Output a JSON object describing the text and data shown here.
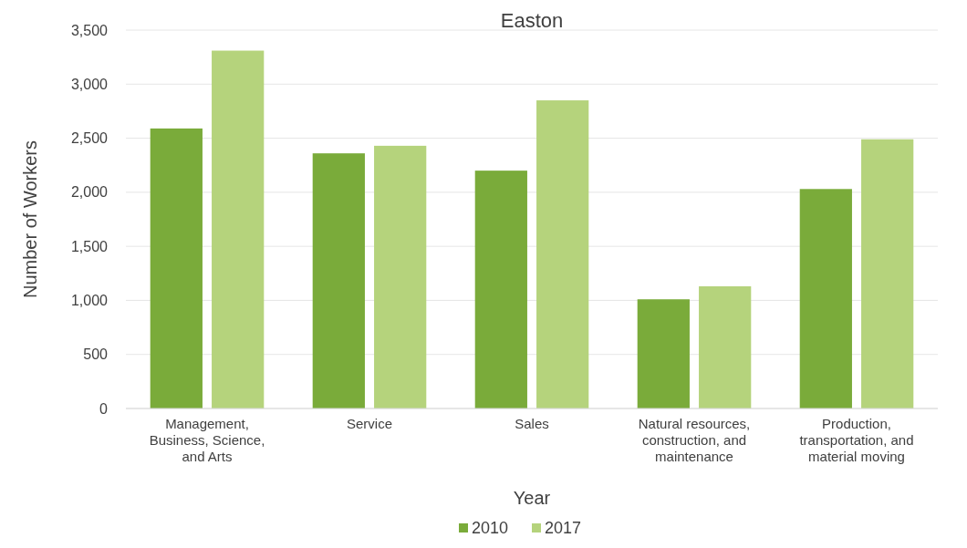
{
  "chart_data": {
    "type": "bar",
    "title": "Easton",
    "xlabel": "Year",
    "ylabel": "Number of Workers",
    "categories": [
      "Management, Business, Science, and Arts",
      "Service",
      "Sales",
      "Natural resources, construction, and maintenance",
      "Production, transportation, and material moving"
    ],
    "series": [
      {
        "name": "2010",
        "color": "#7aab3a",
        "values": [
          2590,
          2360,
          2200,
          1010,
          2030
        ]
      },
      {
        "name": "2017",
        "color": "#b5d37c",
        "values": [
          3310,
          2430,
          2850,
          1130,
          2490
        ]
      }
    ],
    "ylim": [
      0,
      3500
    ],
    "yticks": [
      {
        "value": 0,
        "label": "0"
      },
      {
        "value": 500,
        "label": "500"
      },
      {
        "value": 1000,
        "label": "1,000"
      },
      {
        "value": 1500,
        "label": "1,500"
      },
      {
        "value": 2000,
        "label": "2,000"
      },
      {
        "value": 2500,
        "label": "2,500"
      },
      {
        "value": 3000,
        "label": "3,000"
      },
      {
        "value": 3500,
        "label": "3,500"
      }
    ],
    "grid": "y",
    "legend": "bottom"
  }
}
